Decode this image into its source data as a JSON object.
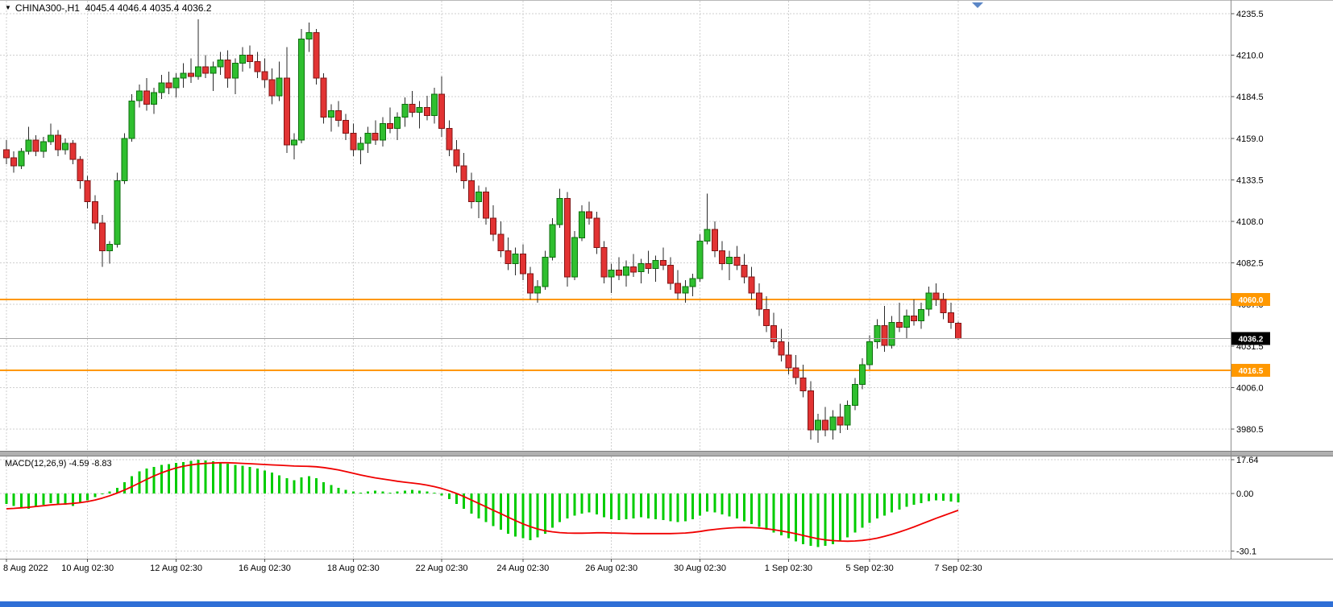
{
  "header": {
    "symbol_line": "CHINA300-,H1  4045.4 4046.4 4035.4 4036.2"
  },
  "indicator": {
    "label": "MACD(12,26,9) -4.59 -8.83"
  },
  "colors": {
    "up": "#2fbf2f",
    "up_stroke": "#0c6e0c",
    "down": "#e23333",
    "down_stroke": "#801414",
    "wick": "#2a2a2a",
    "grid": "#cfcfcf",
    "hline": "#ff9800",
    "current_line": "#a3a3a3",
    "macd_hist": "#00cc00",
    "macd_signal": "#f00000",
    "price_label_bg": "#000000",
    "splitter": "#b0b0b0",
    "bottom_bar": "#2f6fd6",
    "shift_marker": "#5b86c6"
  },
  "chart_data": [
    {
      "type": "candlestick",
      "symbol": "CHINA300-",
      "timeframe": "H1",
      "ohlc": {
        "open": 4045.4,
        "high": 4046.4,
        "low": 4035.4,
        "close": 4036.2
      },
      "y_ticks": [
        4235.5,
        4210.0,
        4184.5,
        4159.0,
        4133.5,
        4108.0,
        4082.5,
        4057.0,
        4031.5,
        4006.0,
        3980.5
      ],
      "y_range": [
        3967,
        4244
      ],
      "hlines": [
        {
          "value": 4060.0,
          "label": "4060.0"
        },
        {
          "value": 4016.5,
          "label": "4016.5"
        }
      ],
      "current_price": {
        "value": 4036.2,
        "label": "4036.2"
      },
      "x_ticks": [
        {
          "label": "8 Aug 2022",
          "index": 0
        },
        {
          "label": "10 Aug 02:30",
          "index": 11
        },
        {
          "label": "12 Aug 02:30",
          "index": 23
        },
        {
          "label": "16 Aug 02:30",
          "index": 35
        },
        {
          "label": "18 Aug 02:30",
          "index": 47
        },
        {
          "label": "22 Aug 02:30",
          "index": 59
        },
        {
          "label": "24 Aug 02:30",
          "index": 70
        },
        {
          "label": "26 Aug 02:30",
          "index": 82
        },
        {
          "label": "30 Aug 02:30",
          "index": 94
        },
        {
          "label": "1 Sep 02:30",
          "index": 106
        },
        {
          "label": "5 Sep 02:30",
          "index": 117
        },
        {
          "label": "7 Sep 02:30",
          "index": 129
        }
      ],
      "candles": [
        [
          4152,
          4158,
          4143,
          4147
        ],
        [
          4147,
          4151,
          4138,
          4142
        ],
        [
          4142,
          4153,
          4140,
          4151
        ],
        [
          4151,
          4166,
          4149,
          4158
        ],
        [
          4158,
          4161,
          4148,
          4151
        ],
        [
          4151,
          4160,
          4147,
          4157
        ],
        [
          4157,
          4168,
          4155,
          4161
        ],
        [
          4161,
          4164,
          4148,
          4152
        ],
        [
          4152,
          4159,
          4149,
          4156
        ],
        [
          4156,
          4158,
          4143,
          4146
        ],
        [
          4146,
          4148,
          4128,
          4133
        ],
        [
          4133,
          4136,
          4116,
          4120
        ],
        [
          4120,
          4124,
          4103,
          4107
        ],
        [
          4107,
          4112,
          4080,
          4090
        ],
        [
          4090,
          4096,
          4082,
          4094
        ],
        [
          4094,
          4138,
          4092,
          4133
        ],
        [
          4133,
          4162,
          4131,
          4159
        ],
        [
          4159,
          4186,
          4157,
          4182
        ],
        [
          4182,
          4192,
          4178,
          4188
        ],
        [
          4188,
          4196,
          4176,
          4180
        ],
        [
          4180,
          4190,
          4174,
          4187
        ],
        [
          4187,
          4198,
          4183,
          4193
        ],
        [
          4193,
          4200,
          4186,
          4190
        ],
        [
          4190,
          4199,
          4184,
          4196
        ],
        [
          4196,
          4205,
          4190,
          4199
        ],
        [
          4199,
          4208,
          4193,
          4197
        ],
        [
          4197,
          4232,
          4195,
          4203
        ],
        [
          4203,
          4210,
          4196,
          4199
        ],
        [
          4199,
          4206,
          4188,
          4203
        ],
        [
          4203,
          4212,
          4198,
          4207
        ],
        [
          4207,
          4213,
          4190,
          4196
        ],
        [
          4196,
          4208,
          4186,
          4205
        ],
        [
          4205,
          4215,
          4200,
          4210
        ],
        [
          4210,
          4216,
          4202,
          4206
        ],
        [
          4206,
          4212,
          4196,
          4200
        ],
        [
          4200,
          4208,
          4190,
          4195
        ],
        [
          4195,
          4202,
          4180,
          4185
        ],
        [
          4185,
          4206,
          4182,
          4196
        ],
        [
          4196,
          4215,
          4150,
          4155
        ],
        [
          4155,
          4162,
          4146,
          4158
        ],
        [
          4158,
          4226,
          4156,
          4220
        ],
        [
          4220,
          4230,
          4212,
          4224
        ],
        [
          4224,
          4226,
          4192,
          4196
        ],
        [
          4196,
          4199,
          4168,
          4172
        ],
        [
          4172,
          4180,
          4163,
          4176
        ],
        [
          4176,
          4182,
          4166,
          4170
        ],
        [
          4170,
          4174,
          4158,
          4162
        ],
        [
          4162,
          4168,
          4148,
          4152
        ],
        [
          4152,
          4160,
          4143,
          4156
        ],
        [
          4156,
          4166,
          4150,
          4162
        ],
        [
          4162,
          4170,
          4155,
          4158
        ],
        [
          4158,
          4172,
          4154,
          4168
        ],
        [
          4168,
          4178,
          4162,
          4165
        ],
        [
          4165,
          4175,
          4158,
          4172
        ],
        [
          4172,
          4184,
          4166,
          4180
        ],
        [
          4180,
          4188,
          4172,
          4175
        ],
        [
          4175,
          4182,
          4165,
          4178
        ],
        [
          4178,
          4185,
          4170,
          4173
        ],
        [
          4173,
          4190,
          4168,
          4186
        ],
        [
          4186,
          4197,
          4160,
          4165
        ],
        [
          4165,
          4170,
          4148,
          4152
        ],
        [
          4152,
          4158,
          4138,
          4142
        ],
        [
          4142,
          4150,
          4128,
          4133
        ],
        [
          4133,
          4138,
          4116,
          4120
        ],
        [
          4120,
          4130,
          4110,
          4126
        ],
        [
          4126,
          4129,
          4106,
          4110
        ],
        [
          4110,
          4118,
          4096,
          4100
        ],
        [
          4100,
          4108,
          4086,
          4090
        ],
        [
          4090,
          4098,
          4078,
          4082
        ],
        [
          4082,
          4092,
          4075,
          4088
        ],
        [
          4088,
          4094,
          4072,
          4076
        ],
        [
          4076,
          4080,
          4060,
          4064
        ],
        [
          4064,
          4072,
          4058,
          4068
        ],
        [
          4068,
          4090,
          4066,
          4086
        ],
        [
          4086,
          4110,
          4084,
          4106
        ],
        [
          4106,
          4128,
          4104,
          4122
        ],
        [
          4122,
          4126,
          4068,
          4074
        ],
        [
          4074,
          4102,
          4072,
          4098
        ],
        [
          4098,
          4118,
          4096,
          4114
        ],
        [
          4114,
          4120,
          4106,
          4110
        ],
        [
          4110,
          4114,
          4088,
          4092
        ],
        [
          4092,
          4096,
          4070,
          4074
        ],
        [
          4074,
          4082,
          4064,
          4078
        ],
        [
          4078,
          4086,
          4072,
          4075
        ],
        [
          4075,
          4084,
          4068,
          4080
        ],
        [
          4080,
          4088,
          4074,
          4077
        ],
        [
          4077,
          4085,
          4070,
          4082
        ],
        [
          4082,
          4090,
          4076,
          4079
        ],
        [
          4079,
          4087,
          4071,
          4084
        ],
        [
          4084,
          4092,
          4078,
          4081
        ],
        [
          4081,
          4086,
          4066,
          4070
        ],
        [
          4070,
          4078,
          4060,
          4064
        ],
        [
          4064,
          4072,
          4058,
          4068
        ],
        [
          4068,
          4076,
          4062,
          4073
        ],
        [
          4073,
          4100,
          4071,
          4096
        ],
        [
          4096,
          4125,
          4094,
          4103
        ],
        [
          4103,
          4108,
          4086,
          4090
        ],
        [
          4090,
          4096,
          4078,
          4082
        ],
        [
          4082,
          4090,
          4072,
          4086
        ],
        [
          4086,
          4093,
          4078,
          4081
        ],
        [
          4081,
          4088,
          4070,
          4074
        ],
        [
          4074,
          4080,
          4060,
          4064
        ],
        [
          4064,
          4070,
          4050,
          4054
        ],
        [
          4054,
          4062,
          4040,
          4044
        ],
        [
          4044,
          4052,
          4030,
          4034
        ],
        [
          4034,
          4042,
          4022,
          4026
        ],
        [
          4026,
          4034,
          4014,
          4018
        ],
        [
          4018,
          4026,
          4008,
          4012
        ],
        [
          4012,
          4020,
          4000,
          4004
        ],
        [
          4004,
          4010,
          3974,
          3980
        ],
        [
          3980,
          3990,
          3972,
          3986
        ],
        [
          3986,
          3994,
          3976,
          3980
        ],
        [
          3980,
          3992,
          3974,
          3988
        ],
        [
          3988,
          3996,
          3978,
          3983
        ],
        [
          3983,
          3998,
          3980,
          3995
        ],
        [
          3995,
          4012,
          3992,
          4008
        ],
        [
          4008,
          4024,
          4005,
          4020
        ],
        [
          4020,
          4038,
          4017,
          4034
        ],
        [
          4034,
          4048,
          4030,
          4044
        ],
        [
          4044,
          4056,
          4028,
          4032
        ],
        [
          4032,
          4050,
          4030,
          4046
        ],
        [
          4046,
          4058,
          4040,
          4043
        ],
        [
          4043,
          4054,
          4036,
          4050
        ],
        [
          4050,
          4060,
          4044,
          4047
        ],
        [
          4047,
          4058,
          4042,
          4054
        ],
        [
          4054,
          4068,
          4050,
          4064
        ],
        [
          4064,
          4070,
          4056,
          4060
        ],
        [
          4060,
          4064,
          4048,
          4052
        ],
        [
          4052,
          4058,
          4042,
          4046
        ],
        [
          4045.4,
          4046.4,
          4035.4,
          4036.2
        ]
      ]
    },
    {
      "type": "macd",
      "name": "MACD(12,26,9)",
      "macd_value": -4.59,
      "signal_value": -8.83,
      "y_ticks": [
        17.64,
        0,
        -30.1
      ],
      "y_tick_labels": [
        "17.64",
        "0.00",
        "-30.1"
      ],
      "histogram": [
        -5.5,
        -6.5,
        -7.5,
        -8,
        -7,
        -6,
        -5,
        -5.5,
        -6,
        -6.5,
        -5,
        -3.5,
        -2,
        -0.5,
        1,
        3,
        6,
        9,
        11.5,
        13,
        14,
        15,
        15.5,
        16,
        16.5,
        17,
        17.64,
        17.2,
        16.8,
        16.2,
        15.6,
        15,
        14.5,
        14,
        13,
        12,
        11,
        9.5,
        8,
        7,
        8.5,
        9,
        8,
        6,
        4.5,
        3,
        2,
        1,
        0.5,
        1,
        1.5,
        1,
        0.5,
        1,
        1.5,
        2,
        1.5,
        1,
        0.5,
        -1,
        -3,
        -5.5,
        -8,
        -10.5,
        -13,
        -15,
        -17,
        -19,
        -21,
        -22.5,
        -23.5,
        -24.5,
        -23,
        -21,
        -18,
        -15,
        -13,
        -11.5,
        -10.5,
        -10,
        -11,
        -12.5,
        -13.5,
        -14,
        -13.5,
        -13,
        -12.5,
        -13,
        -13.5,
        -14,
        -14.5,
        -15,
        -14.5,
        -13.5,
        -11.5,
        -9.5,
        -10,
        -11,
        -12,
        -13,
        -14.5,
        -16,
        -17.5,
        -19,
        -20.5,
        -22,
        -23.5,
        -25,
        -26.5,
        -27.5,
        -28,
        -27.5,
        -26.5,
        -25,
        -23,
        -20.5,
        -18,
        -15.5,
        -13,
        -11.5,
        -10,
        -8.5,
        -7,
        -6,
        -5,
        -4,
        -3.5,
        -3.8,
        -4.2,
        -4.59
      ],
      "signal": [
        -8,
        -7.8,
        -7.5,
        -7.2,
        -6.8,
        -6.4,
        -6,
        -5.7,
        -5.5,
        -5.2,
        -4.8,
        -4.2,
        -3.4,
        -2.4,
        -1.2,
        0.2,
        1.8,
        3.6,
        5.5,
        7.4,
        9.2,
        10.8,
        12.2,
        13.4,
        14.3,
        15,
        15.5,
        15.8,
        16,
        16.1,
        16.1,
        16,
        15.8,
        15.6,
        15.4,
        15.2,
        15,
        14.8,
        14.6,
        14.4,
        14.3,
        14.2,
        14,
        13.6,
        13,
        12.3,
        11.5,
        10.6,
        9.7,
        8.9,
        8.2,
        7.6,
        7,
        6.4,
        5.9,
        5.5,
        5,
        4.4,
        3.6,
        2.6,
        1.4,
        0,
        -1.6,
        -3.4,
        -5.2,
        -7,
        -8.8,
        -10.6,
        -12.4,
        -14.2,
        -15.9,
        -17.4,
        -18.6,
        -19.5,
        -20.1,
        -20.5,
        -20.7,
        -20.8,
        -20.8,
        -20.7,
        -20.6,
        -20.6,
        -20.7,
        -20.8,
        -20.9,
        -21,
        -21,
        -21,
        -21,
        -21,
        -21,
        -20.9,
        -20.7,
        -20.4,
        -19.9,
        -19.3,
        -18.8,
        -18.4,
        -18.1,
        -17.9,
        -17.8,
        -17.9,
        -18.1,
        -18.5,
        -19,
        -19.6,
        -20.3,
        -21.1,
        -22,
        -22.9,
        -23.7,
        -24.3,
        -24.7,
        -24.9,
        -25,
        -24.9,
        -24.6,
        -24.1,
        -23.4,
        -22.5,
        -21.4,
        -20.2,
        -18.9,
        -17.5,
        -16,
        -14.5,
        -13,
        -11.6,
        -10.2,
        -8.83
      ]
    }
  ]
}
